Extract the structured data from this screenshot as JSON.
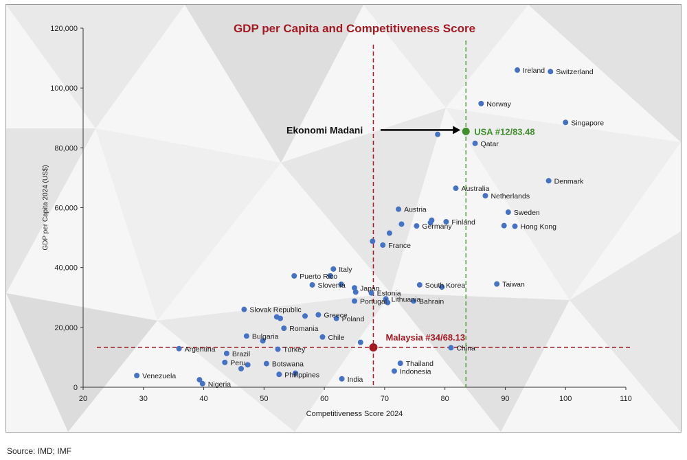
{
  "source": "Source: IMD; IMF",
  "colors": {
    "point": "#4472c4",
    "title": "#a31a22",
    "malaysia": "#a31a22",
    "usa": "#3f8f2a",
    "axis": "#333333",
    "background_light": "#f7f7f7",
    "background_dark": "#dcdcdc"
  },
  "chart_data": {
    "type": "scatter",
    "title": "GDP per Capita and Competitiveness Score",
    "xlabel": "Competitiveness Score 2024",
    "ylabel": "GDP per Capita 2024 (US$)",
    "xlim": [
      20,
      110
    ],
    "ylim": [
      0,
      120000
    ],
    "xticks": [
      "20",
      "30",
      "40",
      "50",
      "60",
      "70",
      "80",
      "90",
      "100",
      "110"
    ],
    "yticks": [
      "0",
      "20,000",
      "40,000",
      "60,000",
      "80,000",
      "100,000",
      "120,000"
    ],
    "grid": false,
    "annotation": {
      "text": "Ekonomi Madani"
    },
    "highlights": [
      {
        "label": "Malaysia #34/68.13",
        "x": 68.13,
        "y": 13300,
        "color": "#a31a22"
      },
      {
        "label": "USA #12/83.48",
        "x": 83.48,
        "y": 85500,
        "color": "#3f8f2a"
      }
    ],
    "points": [
      {
        "x": 92,
        "y": 106000,
        "label": "Ireland"
      },
      {
        "x": 97.5,
        "y": 105500,
        "label": "Switzerland"
      },
      {
        "x": 86,
        "y": 94800,
        "label": "Norway"
      },
      {
        "x": 100,
        "y": 88500,
        "label": "Singapore"
      },
      {
        "x": 78.8,
        "y": 84500,
        "label": ""
      },
      {
        "x": 85,
        "y": 81500,
        "label": "Qatar"
      },
      {
        "x": 97.2,
        "y": 69000,
        "label": "Denmark"
      },
      {
        "x": 81.8,
        "y": 66500,
        "label": "Australia"
      },
      {
        "x": 86.7,
        "y": 64000,
        "label": "Netherlands"
      },
      {
        "x": 72.3,
        "y": 59500,
        "label": "Austria"
      },
      {
        "x": 90.5,
        "y": 58500,
        "label": "Sweden"
      },
      {
        "x": 77.8,
        "y": 55800,
        "label": ""
      },
      {
        "x": 77.6,
        "y": 55000,
        "label": ""
      },
      {
        "x": 80.2,
        "y": 55300,
        "label": "Finland"
      },
      {
        "x": 72.8,
        "y": 54500,
        "label": ""
      },
      {
        "x": 75.3,
        "y": 53900,
        "label": "Germany"
      },
      {
        "x": 89.8,
        "y": 54000,
        "label": ""
      },
      {
        "x": 91.6,
        "y": 53800,
        "label": "Hong Kong"
      },
      {
        "x": 70.8,
        "y": 51500,
        "label": ""
      },
      {
        "x": 68,
        "y": 48800,
        "label": ""
      },
      {
        "x": 69.7,
        "y": 47500,
        "label": "France"
      },
      {
        "x": 61.5,
        "y": 39500,
        "label": "Italy"
      },
      {
        "x": 61,
        "y": 37200,
        "label": ""
      },
      {
        "x": 55,
        "y": 37200,
        "label": "Puerto Rico"
      },
      {
        "x": 58,
        "y": 34200,
        "label": "Slovenia"
      },
      {
        "x": 62.8,
        "y": 34400,
        "label": ""
      },
      {
        "x": 65,
        "y": 33200,
        "label": "Japan"
      },
      {
        "x": 65.2,
        "y": 31800,
        "label": ""
      },
      {
        "x": 67.8,
        "y": 31500,
        "label": "Estonia"
      },
      {
        "x": 65,
        "y": 28800,
        "label": "Portugal"
      },
      {
        "x": 70.2,
        "y": 29500,
        "label": "Lithuania"
      },
      {
        "x": 70.5,
        "y": 28300,
        "label": ""
      },
      {
        "x": 75.8,
        "y": 34200,
        "label": "South Korea"
      },
      {
        "x": 79.5,
        "y": 33500,
        "label": ""
      },
      {
        "x": 88.6,
        "y": 34500,
        "label": "Taiwan"
      },
      {
        "x": 74.8,
        "y": 28800,
        "label": "Bahrain"
      },
      {
        "x": 46.7,
        "y": 26000,
        "label": "Slovak Republic"
      },
      {
        "x": 59,
        "y": 24200,
        "label": "Greece"
      },
      {
        "x": 56.8,
        "y": 23800,
        "label": ""
      },
      {
        "x": 52.1,
        "y": 23500,
        "label": ""
      },
      {
        "x": 52.7,
        "y": 23000,
        "label": ""
      },
      {
        "x": 62,
        "y": 23000,
        "label": "Poland"
      },
      {
        "x": 53.3,
        "y": 19700,
        "label": "Romania"
      },
      {
        "x": 47.1,
        "y": 17100,
        "label": "Bulgaria"
      },
      {
        "x": 59.7,
        "y": 16800,
        "label": "Chile"
      },
      {
        "x": 49.8,
        "y": 15500,
        "label": ""
      },
      {
        "x": 66,
        "y": 15000,
        "label": ""
      },
      {
        "x": 35.9,
        "y": 12900,
        "label": "Argentina"
      },
      {
        "x": 52.3,
        "y": 12700,
        "label": "Turkey"
      },
      {
        "x": 81,
        "y": 13200,
        "label": "China"
      },
      {
        "x": 43.8,
        "y": 11300,
        "label": "Brazil"
      },
      {
        "x": 43.5,
        "y": 8300,
        "label": "Peru"
      },
      {
        "x": 47.3,
        "y": 7500,
        "label": ""
      },
      {
        "x": 46.2,
        "y": 6200,
        "label": ""
      },
      {
        "x": 50.4,
        "y": 7900,
        "label": "Botswana"
      },
      {
        "x": 72.6,
        "y": 8000,
        "label": "Thailand"
      },
      {
        "x": 71.6,
        "y": 5400,
        "label": "Indonesia"
      },
      {
        "x": 52.5,
        "y": 4300,
        "label": "Philippines"
      },
      {
        "x": 55.2,
        "y": 4700,
        "label": ""
      },
      {
        "x": 28.9,
        "y": 3900,
        "label": "Venezuela"
      },
      {
        "x": 39.3,
        "y": 2500,
        "label": ""
      },
      {
        "x": 39.8,
        "y": 1200,
        "label": "Nigeria"
      },
      {
        "x": 62.9,
        "y": 2800,
        "label": "India"
      }
    ]
  }
}
